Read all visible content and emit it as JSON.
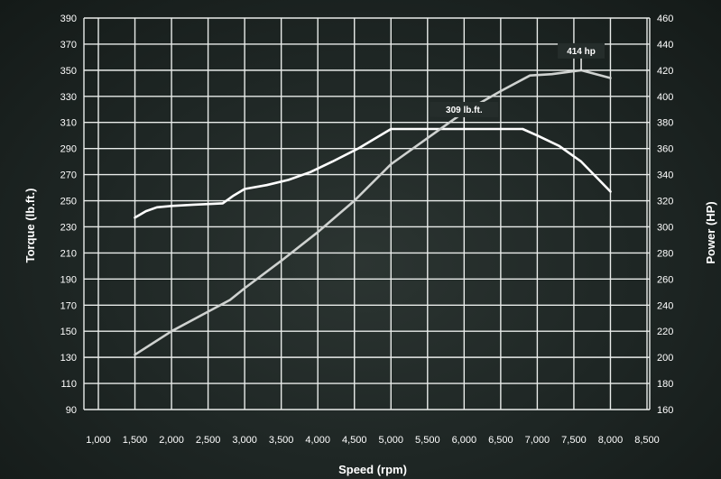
{
  "chart_data": {
    "type": "line",
    "title": "",
    "xlabel": "Speed (rpm)",
    "ylabel_left": "Torque (lb.ft.)",
    "ylabel_right": "Power (HP)",
    "xlim": [
      1000,
      8500
    ],
    "ylim_left": [
      90,
      390
    ],
    "ylim_right": [
      160,
      460
    ],
    "x_ticks": [
      1000,
      1500,
      2000,
      2500,
      3000,
      3500,
      4000,
      4500,
      5000,
      5500,
      6000,
      6500,
      7000,
      7500,
      8000,
      8500
    ],
    "x_tick_labels": [
      "1,000",
      "1,500",
      "2,000",
      "2,500",
      "3,000",
      "3,500",
      "4,000",
      "4,500",
      "5,000",
      "5,500",
      "6,000",
      "6,500",
      "7,000",
      "7,500",
      "8,000",
      "8,500"
    ],
    "y_left_ticks": [
      90,
      110,
      130,
      150,
      170,
      190,
      210,
      230,
      250,
      270,
      290,
      310,
      330,
      350,
      370,
      390
    ],
    "y_right_ticks": [
      160,
      180,
      200,
      220,
      240,
      260,
      280,
      300,
      320,
      340,
      360,
      380,
      400,
      420,
      440,
      460
    ],
    "grid": true,
    "series": [
      {
        "axis": "left",
        "color": "#ffffff",
        "x": [
          1500,
          1650,
          1800,
          2000,
          2300,
          2700,
          2850,
          3000,
          3300,
          3600,
          3900,
          4200,
          4550,
          5000,
          5500,
          6000,
          6500,
          6800,
          7000,
          7300,
          7600,
          8000
        ],
        "values": [
          237,
          242,
          245,
          246,
          247,
          248,
          254,
          259,
          262,
          266,
          272,
          280,
          290,
          305,
          305,
          305,
          305,
          305,
          300,
          292,
          280,
          257
        ]
      },
      {
        "axis": "right",
        "color": "#cfd2d0",
        "x": [
          1500,
          2000,
          2500,
          2800,
          3000,
          3500,
          4000,
          4500,
          5000,
          5500,
          6000,
          6500,
          6900,
          7200,
          7600,
          8000
        ],
        "values": [
          202,
          220,
          235,
          244,
          253,
          274,
          296,
          320,
          348,
          368,
          388,
          404,
          416,
          417,
          420,
          414
        ]
      }
    ],
    "annotations": [
      {
        "text": "309 lb.ft.",
        "x": 6000,
        "y": 305,
        "axis": "left"
      },
      {
        "text": "414 hp",
        "x": 7600,
        "y": 420,
        "axis": "right"
      }
    ]
  }
}
